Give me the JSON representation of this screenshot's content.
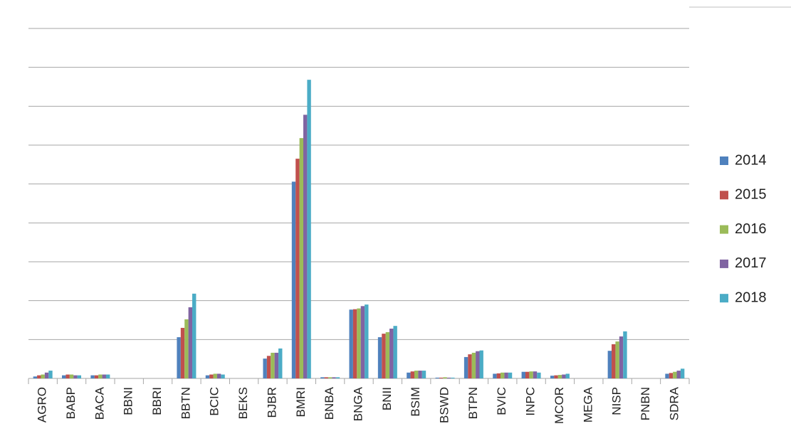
{
  "chart_data": {
    "type": "bar",
    "categories": [
      "AGRO",
      "BABP",
      "BACA",
      "BBNI",
      "BBRI",
      "BBTN",
      "BCIC",
      "BEKS",
      "BJBR",
      "BMRI",
      "BNBA",
      "BNGA",
      "BNII",
      "BSIM",
      "BSWD",
      "BTPN",
      "BVIC",
      "INPC",
      "MCOR",
      "MEGA",
      "NISP",
      "PNBN",
      "SDRA"
    ],
    "series": [
      {
        "name": "2014",
        "color": "#4f81bd",
        "values": [
          0.05,
          0.08,
          0.08,
          0,
          0,
          1.06,
          0.08,
          0,
          0.51,
          5.06,
          0.03,
          1.77,
          1.06,
          0.15,
          0.02,
          0.55,
          0.12,
          0.17,
          0.07,
          0,
          0.71,
          0,
          0.12
        ]
      },
      {
        "name": "2015",
        "color": "#c0504d",
        "values": [
          0.08,
          0.1,
          0.08,
          0,
          0,
          1.3,
          0.1,
          0,
          0.58,
          5.65,
          0.03,
          1.78,
          1.15,
          0.18,
          0.02,
          0.62,
          0.13,
          0.17,
          0.08,
          0,
          0.88,
          0,
          0.14
        ]
      },
      {
        "name": "2016",
        "color": "#9bbb59",
        "values": [
          0.1,
          0.1,
          0.1,
          0,
          0,
          1.52,
          0.12,
          0,
          0.66,
          6.18,
          0.03,
          1.8,
          1.19,
          0.2,
          0.03,
          0.66,
          0.15,
          0.18,
          0.09,
          0,
          0.95,
          0,
          0.17
        ]
      },
      {
        "name": "2017",
        "color": "#8064a2",
        "values": [
          0.15,
          0.08,
          0.1,
          0,
          0,
          1.83,
          0.12,
          0,
          0.66,
          6.78,
          0.03,
          1.86,
          1.28,
          0.2,
          0.02,
          0.7,
          0.15,
          0.18,
          0.1,
          0,
          1.08,
          0,
          0.2
        ]
      },
      {
        "name": "2018",
        "color": "#4bacc6",
        "values": [
          0.2,
          0.08,
          0.1,
          0,
          0,
          2.18,
          0.1,
          0,
          0.77,
          7.68,
          0.03,
          1.9,
          1.35,
          0.2,
          0.02,
          0.72,
          0.15,
          0.15,
          0.12,
          0,
          1.21,
          0,
          0.25
        ]
      }
    ],
    "ylim": [
      0,
      9
    ],
    "yticks": [
      0,
      1,
      2,
      3,
      4,
      5,
      6,
      7,
      8,
      9
    ],
    "grid": true,
    "legend": "right"
  }
}
